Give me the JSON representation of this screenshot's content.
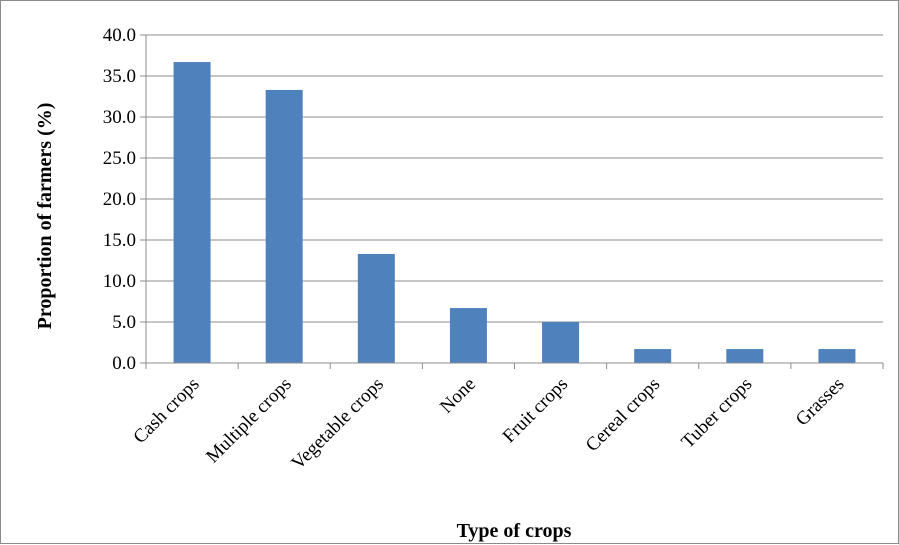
{
  "chart_data": {
    "type": "bar",
    "title": "",
    "xlabel": "Type of crops",
    "ylabel": "Proportion of farmers (%)",
    "categories": [
      "Cash crops",
      "Multiple crops",
      "Vegetable crops",
      "None",
      "Fruit crops",
      "Cereal crops",
      "Tuber crops",
      "Grasses"
    ],
    "values": [
      36.7,
      33.3,
      13.3,
      6.7,
      5.0,
      1.7,
      1.7,
      1.7
    ],
    "ylim": [
      0,
      40
    ],
    "yticks": [
      "0.0",
      "5.0",
      "10.0",
      "15.0",
      "20.0",
      "25.0",
      "30.0",
      "35.0",
      "40.0"
    ],
    "grid": true,
    "legend": "none",
    "bar_color": "#4f81bd"
  }
}
